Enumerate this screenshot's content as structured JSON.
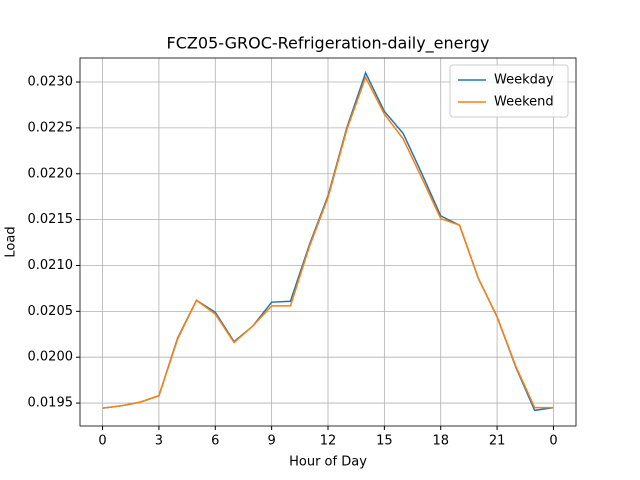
{
  "chart_data": {
    "type": "line",
    "title": "FCZ05-GROC-Refrigeration-daily_energy",
    "xlabel": "Hour of Day",
    "ylabel": "Load",
    "x": [
      0,
      1,
      2,
      3,
      4,
      5,
      6,
      7,
      8,
      9,
      10,
      11,
      12,
      13,
      14,
      15,
      16,
      17,
      18,
      19,
      20,
      21,
      22,
      23,
      24
    ],
    "series": [
      {
        "name": "Weekday",
        "color": "#1f77b4",
        "values": [
          0.019445,
          0.01947,
          0.01951,
          0.01958,
          0.02021,
          0.02062,
          0.02049,
          0.02017,
          0.02034,
          0.0206,
          0.02061,
          0.02122,
          0.02176,
          0.0225,
          0.0231,
          0.02268,
          0.02244,
          0.022,
          0.02154,
          0.02144,
          0.02086,
          0.02044,
          0.01989,
          0.01942,
          0.01945
        ]
      },
      {
        "name": "Weekend",
        "color": "#ff7f0e",
        "values": [
          0.019445,
          0.01947,
          0.01951,
          0.01958,
          0.0202,
          0.02062,
          0.02047,
          0.02016,
          0.02034,
          0.02056,
          0.02056,
          0.0212,
          0.02174,
          0.02248,
          0.02305,
          0.02265,
          0.02238,
          0.02195,
          0.02151,
          0.02144,
          0.02086,
          0.02044,
          0.0199,
          0.01945,
          0.01945
        ]
      }
    ],
    "xlim": [
      -1.2,
      25.2
    ],
    "xticks": [
      0,
      3,
      6,
      9,
      12,
      15,
      18,
      21,
      {
        "value": 24,
        "label": "0"
      }
    ],
    "ylim": [
      0.01925,
      0.023262
    ],
    "yticks": [
      0.0195,
      {
        "value": 0.02,
        "label": "0.0200"
      },
      0.0205,
      {
        "value": 0.021,
        "label": "0.0210"
      },
      0.0215,
      {
        "value": 0.022,
        "label": "0.0220"
      },
      0.0225,
      {
        "value": 0.023,
        "label": "0.0230"
      }
    ],
    "grid": true,
    "legend": "upper-right"
  }
}
